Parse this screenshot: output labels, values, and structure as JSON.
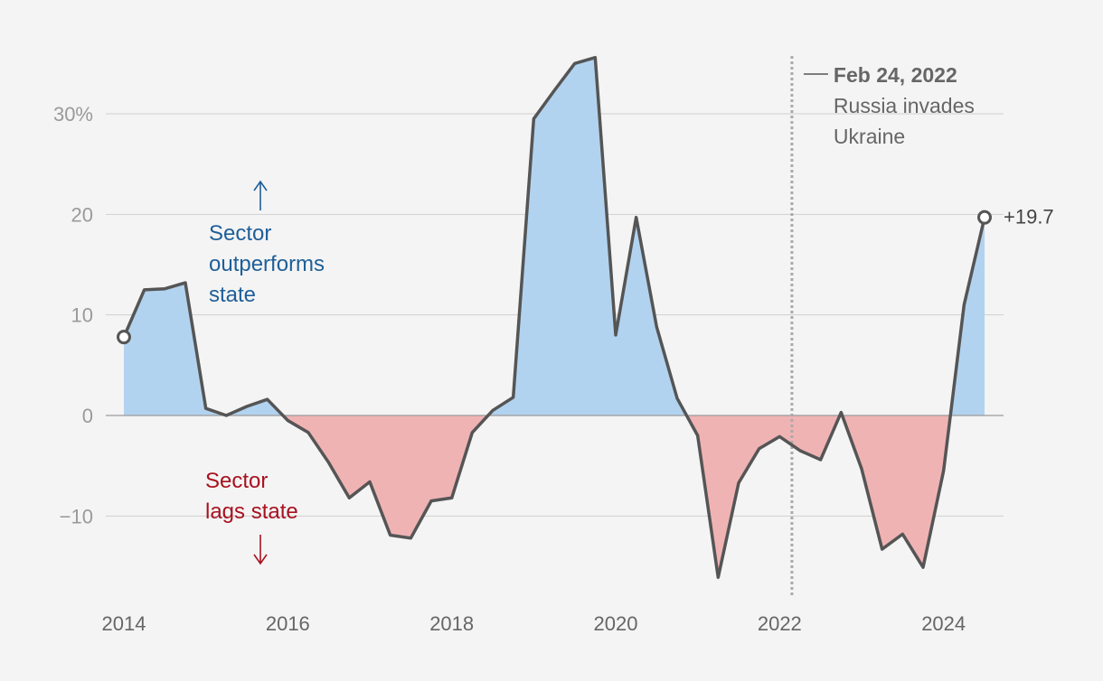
{
  "chart_data": {
    "type": "area",
    "xlim": [
      2014,
      2024.5
    ],
    "ylim": [
      -16.5,
      36
    ],
    "y_ticks": [
      {
        "value": 30,
        "label": "30%"
      },
      {
        "value": 20,
        "label": "20"
      },
      {
        "value": 10,
        "label": "10"
      },
      {
        "value": 0,
        "label": "0"
      },
      {
        "value": -10,
        "label": "−10"
      }
    ],
    "x_ticks": [
      {
        "value": 2014,
        "label": "2014"
      },
      {
        "value": 2016,
        "label": "2016"
      },
      {
        "value": 2018,
        "label": "2018"
      },
      {
        "value": 2020,
        "label": "2020"
      },
      {
        "value": 2022,
        "label": "2022"
      },
      {
        "value": 2024,
        "label": "2024"
      }
    ],
    "grid": true,
    "positive_color": "#b2d3ef",
    "negative_color": "#f0b3b4",
    "line_color": "#555555",
    "series": [
      {
        "points": [
          [
            2014.0,
            7.8
          ],
          [
            2014.25,
            12.5
          ],
          [
            2014.5,
            12.6
          ],
          [
            2014.75,
            13.2
          ],
          [
            2015.0,
            0.7
          ],
          [
            2015.25,
            0.0
          ],
          [
            2015.5,
            0.9
          ],
          [
            2015.75,
            1.6
          ],
          [
            2016.0,
            -0.5
          ],
          [
            2016.25,
            -1.7
          ],
          [
            2016.5,
            -4.7
          ],
          [
            2016.75,
            -8.2
          ],
          [
            2017.0,
            -6.6
          ],
          [
            2017.25,
            -11.9
          ],
          [
            2017.5,
            -12.2
          ],
          [
            2017.75,
            -8.5
          ],
          [
            2018.0,
            -8.2
          ],
          [
            2018.25,
            -1.7
          ],
          [
            2018.5,
            0.5
          ],
          [
            2018.75,
            1.8
          ],
          [
            2019.0,
            29.5
          ],
          [
            2019.25,
            32.3
          ],
          [
            2019.5,
            35.0
          ],
          [
            2019.75,
            35.6
          ],
          [
            2020.0,
            8.0
          ],
          [
            2020.25,
            19.7
          ],
          [
            2020.5,
            8.8
          ],
          [
            2020.75,
            1.7
          ],
          [
            2021.0,
            -2.0
          ],
          [
            2021.25,
            -16.1
          ],
          [
            2021.5,
            -6.7
          ],
          [
            2021.75,
            -3.3
          ],
          [
            2022.0,
            -2.1
          ],
          [
            2022.25,
            -3.5
          ],
          [
            2022.5,
            -4.4
          ],
          [
            2022.75,
            0.3
          ],
          [
            2023.0,
            -5.3
          ],
          [
            2023.25,
            -13.3
          ],
          [
            2023.5,
            -11.8
          ],
          [
            2023.75,
            -15.1
          ],
          [
            2024.0,
            -5.5
          ],
          [
            2024.25,
            11.0
          ],
          [
            2024.5,
            19.7
          ]
        ]
      }
    ],
    "event": {
      "x": 2022.15,
      "date": "Feb 24, 2022",
      "lines": [
        "Russia invades",
        "Ukraine"
      ]
    },
    "end_label": "+19.7",
    "up_label": [
      "Sector",
      "outperforms",
      "state"
    ],
    "down_label": [
      "Sector",
      "lags state"
    ]
  }
}
